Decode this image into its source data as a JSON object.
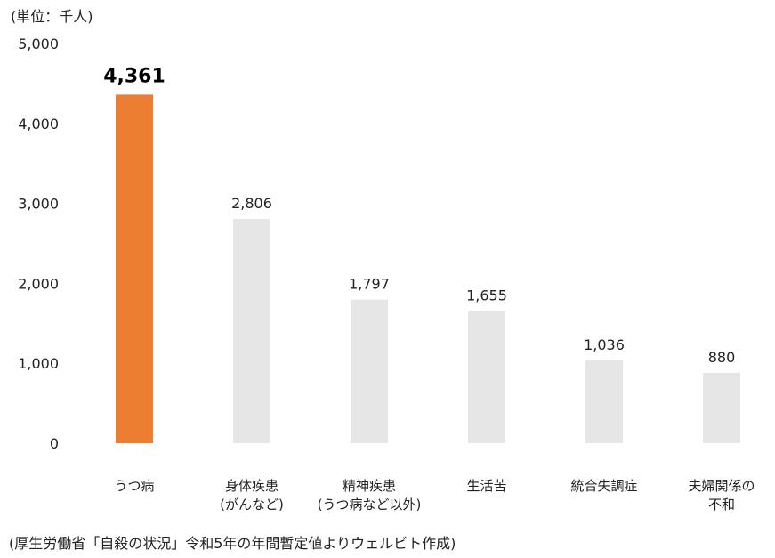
{
  "unit_label": "(単位：千人)",
  "source_note": "(厚生労働省「自殺の状況」令和5年の年間暫定値よりウェルビト作成)",
  "colors": {
    "highlight": "#ED7D31",
    "normal": "#E6E6E6",
    "text": "#222222"
  },
  "chart_data": {
    "type": "bar",
    "title": "",
    "xlabel": "",
    "ylabel": "",
    "ylim": [
      0,
      5000
    ],
    "yticks": [
      "0",
      "1,000",
      "2,000",
      "3,000",
      "4,000",
      "5,000"
    ],
    "grid": false,
    "categories": [
      [
        "うつ病"
      ],
      [
        "身体疾患",
        "(がんなど)"
      ],
      [
        "精神疾患",
        "(うつ病など以外)"
      ],
      [
        "生活苦"
      ],
      [
        "統合失調症"
      ],
      [
        "夫婦関係の",
        "不和"
      ]
    ],
    "values": [
      4361,
      2806,
      1797,
      1655,
      1036,
      880
    ],
    "value_labels": [
      "4,361",
      "2,806",
      "1,797",
      "1,655",
      "1,036",
      "880"
    ],
    "highlight_index": 0
  }
}
